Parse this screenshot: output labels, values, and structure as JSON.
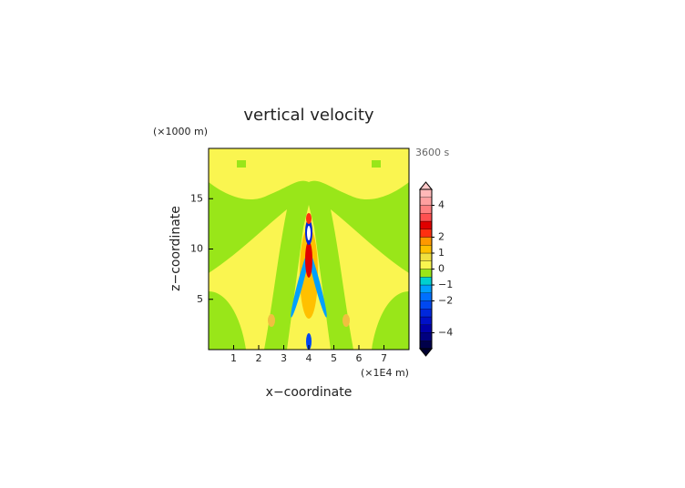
{
  "chart_data": {
    "type": "contour",
    "title": "vertical velocity",
    "x_label": "x−coordinate",
    "y_label": "z−coordinate",
    "x_unit": "(×1E4 m)",
    "y_unit": "(×1000 m)",
    "time_label": "3600 s",
    "xlim": [
      0,
      8
    ],
    "xticks": [
      1,
      2,
      3,
      4,
      5,
      6,
      7
    ],
    "ylim": [
      0,
      20
    ],
    "yticks": [
      5,
      10,
      15
    ],
    "clim": [
      -5,
      5
    ],
    "cticks": [
      4,
      2,
      1,
      0,
      {
        "value": -1,
        "label": "−1"
      },
      {
        "value": -2,
        "label": "−2"
      },
      {
        "value": -4,
        "label": "−4"
      }
    ],
    "colors": [
      "#00004a",
      "#000080",
      "#0000a8",
      "#0010c8",
      "#0028dc",
      "#0048f0",
      "#0070ff",
      "#00a0ff",
      "#00d0d0",
      "#99e619",
      "#faf550",
      "#f0e040",
      "#ffc000",
      "#ff9900",
      "#ff3010",
      "#e00000",
      "#ff5050",
      "#ff8080",
      "#ffa0a0",
      "#ffb8b8"
    ],
    "extend_colors": [
      "#000030",
      "#ffc8c8"
    ]
  }
}
